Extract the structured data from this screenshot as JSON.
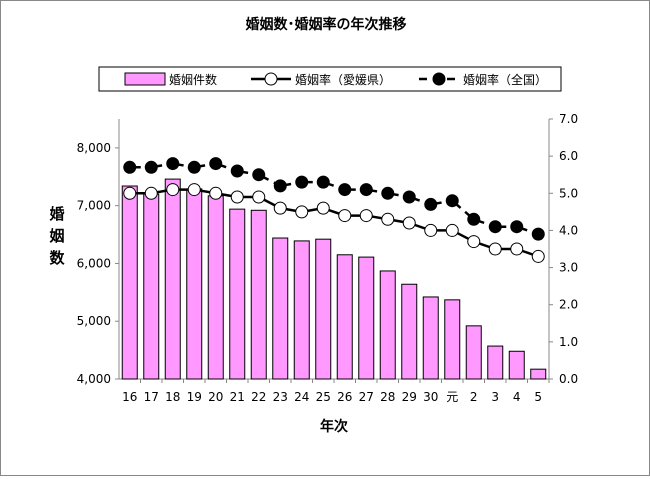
{
  "chart_data": {
    "type": "bar+line",
    "title": "婚姻数･婚姻率の年次推移",
    "xlabel": "年次",
    "ylabel": "婚姻数",
    "categories": [
      "16",
      "17",
      "18",
      "19",
      "20",
      "21",
      "22",
      "23",
      "24",
      "25",
      "26",
      "27",
      "28",
      "29",
      "30",
      "元",
      "2",
      "3",
      "4",
      "5"
    ],
    "ylim": [
      4000,
      8500
    ],
    "yticks": [
      "4,000",
      "5,000",
      "6,000",
      "7,000",
      "8,000"
    ],
    "y2lim": [
      0,
      7
    ],
    "y2ticks": [
      "0.0",
      "1.0",
      "2.0",
      "3.0",
      "4.0",
      "5.0",
      "6.0",
      "7.0"
    ],
    "legend_placement": "top",
    "series": [
      {
        "name": "婚姻件数",
        "type": "bar",
        "axis": "left",
        "color": "#ff99ff",
        "values": [
          7340,
          7200,
          7460,
          7290,
          7170,
          6940,
          6920,
          6440,
          6390,
          6420,
          6150,
          6110,
          5870,
          5640,
          5420,
          5370,
          4920,
          4570,
          4480,
          4170
        ]
      },
      {
        "name": "婚姻率（愛媛県）",
        "type": "line",
        "axis": "right",
        "marker": "open-circle",
        "line": "solid",
        "values": [
          5.0,
          5.0,
          5.1,
          5.1,
          5.0,
          4.9,
          4.9,
          4.6,
          4.5,
          4.6,
          4.4,
          4.4,
          4.3,
          4.2,
          4.0,
          4.0,
          3.7,
          3.5,
          3.5,
          3.3
        ]
      },
      {
        "name": "婚姻率（全国）",
        "type": "line",
        "axis": "right",
        "marker": "filled-circle",
        "line": "dashed",
        "values": [
          5.7,
          5.7,
          5.8,
          5.7,
          5.8,
          5.6,
          5.5,
          5.2,
          5.3,
          5.3,
          5.1,
          5.1,
          5.0,
          4.9,
          4.7,
          4.8,
          4.3,
          4.1,
          4.1,
          3.9
        ]
      }
    ],
    "grid": false
  }
}
